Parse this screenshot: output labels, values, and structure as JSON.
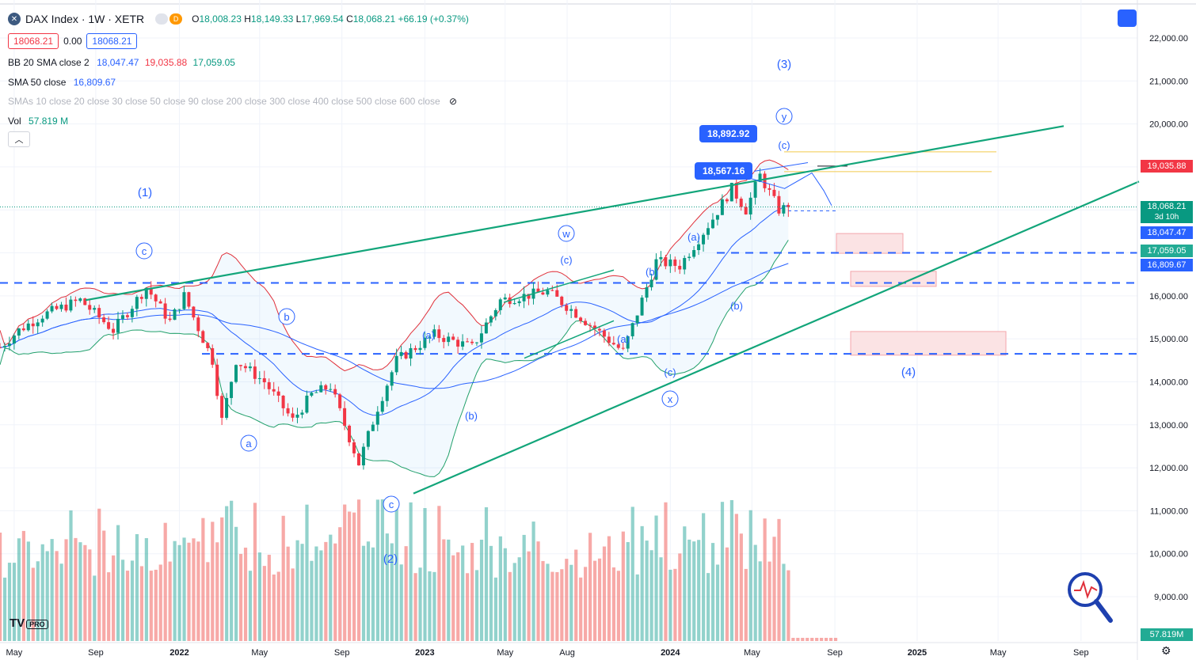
{
  "header": {
    "symbol_icon": "x-icon",
    "title": "DAX Index · 1W · XETR",
    "badge_left": "",
    "badge_right": "D",
    "ohlc": {
      "o_label": "O",
      "o": "18,008.23",
      "h_label": "H",
      "h": "18,149.33",
      "l_label": "L",
      "l": "17,969.54",
      "c_label": "C",
      "c": "18,068.21",
      "change": "+66.19 (+0.37%)"
    }
  },
  "trade": {
    "sell": "18068.21",
    "spread": "0.00",
    "buy": "18068.21"
  },
  "indicators": {
    "bb": {
      "name": "BB 20 SMA close 2",
      "basis": "18,047.47",
      "upper": "19,035.88",
      "lower": "17,059.05"
    },
    "sma50": {
      "name": "SMA 50 close",
      "value": "16,809.67"
    },
    "smas": {
      "name": "SMAs 10 close 20 close 30 close 50 close 90 close 200 close 300 close 400 close 500 close 600 close"
    },
    "vol": {
      "name": "Vol",
      "value": "57.819 M"
    }
  },
  "colors": {
    "up": "#089981",
    "down": "#f23645",
    "bb_upper": "#e0303a",
    "bb_lower": "#22a06b",
    "bb_basis": "#2962ff",
    "channel": "#12a57a",
    "dash": "#2962ff",
    "zone_fill": "#fbe3e4",
    "zone_border": "#f4a6ab",
    "annotation": "#2962ff"
  },
  "chart_data": {
    "type": "candlestick",
    "title": "DAX Index · 1W · XETR",
    "x_ticks": [
      "May",
      "Sep",
      "2022",
      "May",
      "Sep",
      "2023",
      "May",
      "Aug",
      "2024",
      "May",
      "Sep",
      "2025",
      "May",
      "Sep"
    ],
    "y_ticks": [
      "22,000.00",
      "21,000.00",
      "20,000.00",
      "19,000.00",
      "18,000.00",
      "17,000.00",
      "16,000.00",
      "15,000.00",
      "14,000.00",
      "13,000.00",
      "12,000.00",
      "11,000.00",
      "10,000.00",
      "9,000.00"
    ],
    "ylim": [
      8300,
      22500
    ],
    "series_anchor_close": [
      [
        "2021-04-12",
        14800
      ],
      [
        "2021-05-10",
        15200
      ],
      [
        "2021-06-14",
        15550
      ],
      [
        "2021-08-09",
        15900
      ],
      [
        "2021-09-27",
        15200
      ],
      [
        "2021-11-15",
        16200
      ],
      [
        "2021-12-20",
        15400
      ],
      [
        "2022-01-10",
        16000
      ],
      [
        "2022-02-21",
        14500
      ],
      [
        "2022-03-07",
        13100
      ],
      [
        "2022-03-28",
        14500
      ],
      [
        "2022-05-09",
        14000
      ],
      [
        "2022-06-20",
        13100
      ],
      [
        "2022-07-18",
        13700
      ],
      [
        "2022-08-15",
        13900
      ],
      [
        "2022-09-26",
        12100
      ],
      [
        "2022-10-24",
        13400
      ],
      [
        "2022-11-21",
        14500
      ],
      [
        "2023-01-16",
        15100
      ],
      [
        "2023-03-13",
        14800
      ],
      [
        "2023-04-24",
        15900
      ],
      [
        "2023-07-03",
        16100
      ],
      [
        "2023-08-14",
        15600
      ],
      [
        "2023-10-23",
        14700
      ],
      [
        "2023-12-11",
        16800
      ],
      [
        "2024-01-15",
        16700
      ],
      [
        "2024-03-04",
        17800
      ],
      [
        "2024-04-01",
        18500
      ],
      [
        "2024-04-22",
        18000
      ],
      [
        "2024-05-13",
        18800
      ],
      [
        "2024-06-10",
        18000
      ],
      [
        "2024-06-24",
        18068.21
      ]
    ],
    "last_price": 18068.21,
    "bb_upper_last": 19035.88,
    "bb_basis_last": 18047.47,
    "bb_lower_last": 17059.05,
    "sma50_last": 16809.67,
    "volume_last": "57.819M",
    "horizontal_levels": [
      17000,
      16300,
      14650
    ],
    "fib_levels": [
      19350,
      18890
    ],
    "callouts": [
      "18,892.92",
      "18,567.16"
    ],
    "wave_labels": [
      "(1)",
      "(2)",
      "(3)",
      "(4)",
      "a",
      "b",
      "c",
      "w",
      "x",
      "y",
      "(a)",
      "(b)",
      "(c)"
    ],
    "countdown": "3d 10h"
  },
  "right_tags": {
    "bb_upper": "19,035.88",
    "last": "18,068.21",
    "countdown": "3d 10h",
    "bb_basis": "18,047.47",
    "bb_lower": "17,059.05",
    "sma50": "16,809.67",
    "volume": "57.819M"
  },
  "branding": {
    "logo": "TV",
    "pro": "PRO"
  }
}
